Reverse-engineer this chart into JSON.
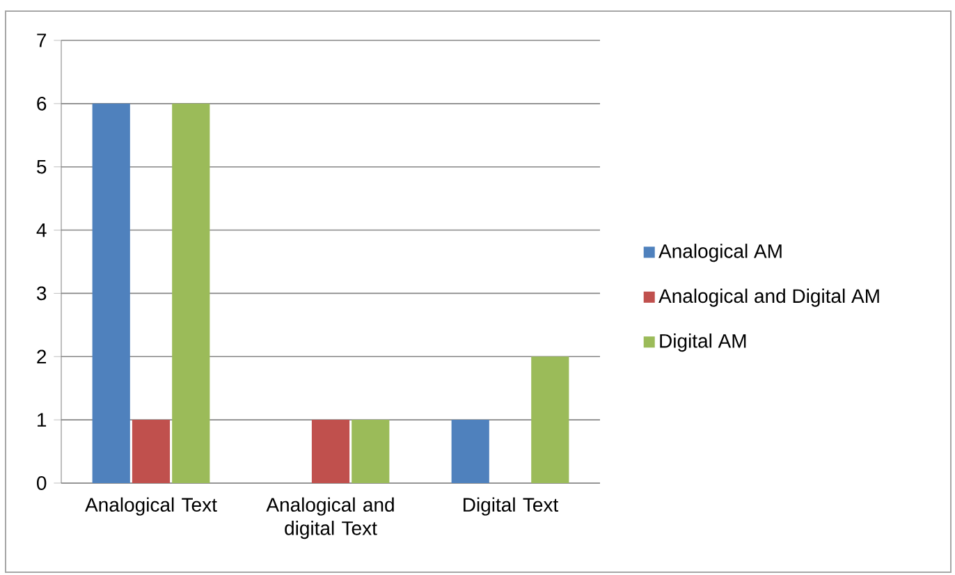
{
  "chart_data": {
    "type": "bar",
    "categories": [
      "Analogical Text",
      "Analogical and digital Text",
      "Digital Text"
    ],
    "series": [
      {
        "name": "Analogical AM",
        "color": "#4f81bd",
        "values": [
          6,
          0,
          1
        ]
      },
      {
        "name": "Analogical and Digital AM",
        "color": "#c0504d",
        "values": [
          1,
          1,
          0
        ]
      },
      {
        "name": "Digital AM",
        "color": "#9bbb59",
        "values": [
          6,
          1,
          2
        ]
      }
    ],
    "ylim": [
      0,
      7
    ],
    "yticks": [
      0,
      1,
      2,
      3,
      4,
      5,
      6,
      7
    ],
    "grid": "y",
    "legend": "right"
  }
}
